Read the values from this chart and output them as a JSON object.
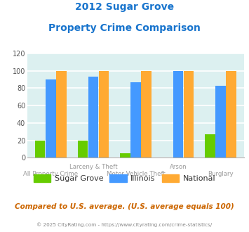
{
  "title_line1": "2012 Sugar Grove",
  "title_line2": "Property Crime Comparison",
  "title_color": "#1874CD",
  "categories": [
    "All Property Crime",
    "Larceny & Theft",
    "Motor Vehicle Theft",
    "Arson",
    "Burglary"
  ],
  "x_labels_line1": [
    "",
    "Larceny & Theft",
    "",
    "Arson",
    ""
  ],
  "x_labels_line2": [
    "All Property Crime",
    "",
    "Motor Vehicle Theft",
    "",
    "Burglary"
  ],
  "sugar_grove": [
    20,
    20,
    5,
    0,
    27
  ],
  "illinois": [
    90,
    93,
    87,
    100,
    83
  ],
  "national": [
    100,
    100,
    100,
    100,
    100
  ],
  "sugar_grove_color": "#66CC00",
  "illinois_color": "#4499FF",
  "national_color": "#FFAA33",
  "ylim": [
    0,
    120
  ],
  "yticks": [
    0,
    20,
    40,
    60,
    80,
    100,
    120
  ],
  "fig_bg_color": "#FFFFFF",
  "plot_bg_color": "#DCF0F0",
  "grid_color": "#FFFFFF",
  "footer_text": "Compared to U.S. average. (U.S. average equals 100)",
  "footer_color": "#CC6600",
  "credit_text": "© 2025 CityRating.com - https://www.cityrating.com/crime-statistics/",
  "credit_color": "#888888",
  "legend_labels": [
    "Sugar Grove",
    "Illinois",
    "National"
  ],
  "bar_width": 0.24,
  "bar_gap": 0.01
}
